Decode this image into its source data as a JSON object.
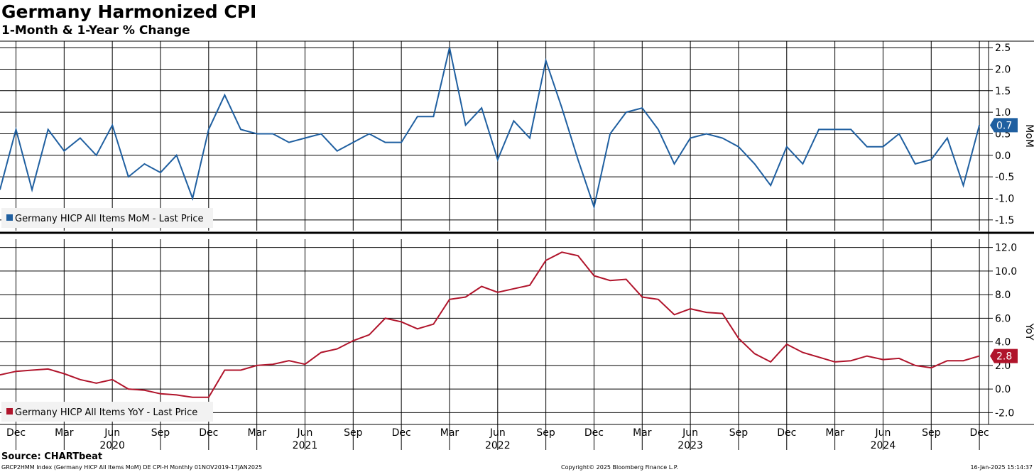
{
  "header": {
    "title": "Germany Harmonized CPI",
    "subtitle": "1-Month & 1-Year % Change"
  },
  "footer": {
    "source": "Source: CHARTbeat",
    "ticker_info": "GRCP2HMM Index (Germany HICP All Items MoM) DE CPI-H  Monthly 01NOV2019-17JAN2025",
    "copyright": "Copyright© 2025 Bloomberg Finance L.P.",
    "timestamp": "16-Jan-2025 15:14:37"
  },
  "colors": {
    "mom": "#1f5fa0",
    "yoy": "#b0142b",
    "grid": "#000000"
  },
  "chart_data": [
    {
      "type": "line",
      "ylabel": "MoM",
      "ylim": [
        -1.75,
        2.65
      ],
      "yticks": [
        "-1.5",
        "-1.0",
        "-0.5",
        "0.0",
        "0.5",
        "1.0",
        "1.5",
        "2.0",
        "2.5"
      ],
      "legend": "Germany HICP All Items MoM - Last Price",
      "legend_position": "bottom-left",
      "last_value_label": "0.7",
      "series": [
        {
          "name": "Germany HICP All Items MoM - Last Price",
          "x": [
            "2019-11",
            "2019-12",
            "2020-01",
            "2020-02",
            "2020-03",
            "2020-04",
            "2020-05",
            "2020-06",
            "2020-07",
            "2020-08",
            "2020-09",
            "2020-10",
            "2020-11",
            "2020-12",
            "2021-01",
            "2021-02",
            "2021-03",
            "2021-04",
            "2021-05",
            "2021-06",
            "2021-07",
            "2021-08",
            "2021-09",
            "2021-10",
            "2021-11",
            "2021-12",
            "2022-01",
            "2022-02",
            "2022-03",
            "2022-04",
            "2022-05",
            "2022-06",
            "2022-07",
            "2022-08",
            "2022-09",
            "2022-10",
            "2022-11",
            "2022-12",
            "2023-01",
            "2023-02",
            "2023-03",
            "2023-04",
            "2023-05",
            "2023-06",
            "2023-07",
            "2023-08",
            "2023-09",
            "2023-10",
            "2023-11",
            "2023-12",
            "2024-01",
            "2024-02",
            "2024-03",
            "2024-04",
            "2024-05",
            "2024-06",
            "2024-07",
            "2024-08",
            "2024-09",
            "2024-10",
            "2024-11",
            "2024-12"
          ],
          "values": [
            -0.8,
            0.6,
            -0.8,
            0.6,
            0.1,
            0.4,
            0.0,
            0.7,
            -0.5,
            -0.2,
            -0.4,
            0.0,
            -1.0,
            0.6,
            1.4,
            0.6,
            0.5,
            0.5,
            0.3,
            0.4,
            0.5,
            0.1,
            0.3,
            0.5,
            0.3,
            0.3,
            0.9,
            0.9,
            2.5,
            0.7,
            1.1,
            -0.1,
            0.8,
            0.4,
            2.2,
            1.1,
            -0.1,
            -1.2,
            0.5,
            1.0,
            1.1,
            0.6,
            -0.2,
            0.4,
            0.5,
            0.4,
            0.2,
            -0.2,
            -0.7,
            0.2,
            -0.2,
            0.6,
            0.6,
            0.6,
            0.2,
            0.2,
            0.5,
            -0.2,
            -0.1,
            0.4,
            -0.7,
            0.7
          ]
        }
      ]
    },
    {
      "type": "line",
      "ylabel": "YoY",
      "ylim": [
        -3.0,
        12.7
      ],
      "yticks": [
        "-2.0",
        "0.0",
        "2.0",
        "4.0",
        "6.0",
        "8.0",
        "10.0",
        "12.0"
      ],
      "legend": "Germany HICP All Items YoY - Last Price",
      "legend_position": "bottom-left",
      "last_value_label": "2.8",
      "xlabels": [
        "Dec",
        "Mar",
        "Jun",
        "Sep",
        "Dec",
        "Mar",
        "Jun",
        "Sep",
        "Dec",
        "Mar",
        "Jun",
        "Sep",
        "Dec",
        "Mar",
        "Jun",
        "Sep",
        "Dec",
        "Mar",
        "Jun",
        "Sep",
        "Dec"
      ],
      "years": [
        "2020",
        "2021",
        "2022",
        "2023",
        "2024"
      ],
      "series": [
        {
          "name": "Germany HICP All Items YoY - Last Price",
          "x": [
            "2019-11",
            "2019-12",
            "2020-01",
            "2020-02",
            "2020-03",
            "2020-04",
            "2020-05",
            "2020-06",
            "2020-07",
            "2020-08",
            "2020-09",
            "2020-10",
            "2020-11",
            "2020-12",
            "2021-01",
            "2021-02",
            "2021-03",
            "2021-04",
            "2021-05",
            "2021-06",
            "2021-07",
            "2021-08",
            "2021-09",
            "2021-10",
            "2021-11",
            "2021-12",
            "2022-01",
            "2022-02",
            "2022-03",
            "2022-04",
            "2022-05",
            "2022-06",
            "2022-07",
            "2022-08",
            "2022-09",
            "2022-10",
            "2022-11",
            "2022-12",
            "2023-01",
            "2023-02",
            "2023-03",
            "2023-04",
            "2023-05",
            "2023-06",
            "2023-07",
            "2023-08",
            "2023-09",
            "2023-10",
            "2023-11",
            "2023-12",
            "2024-01",
            "2024-02",
            "2024-03",
            "2024-04",
            "2024-05",
            "2024-06",
            "2024-07",
            "2024-08",
            "2024-09",
            "2024-10",
            "2024-11",
            "2024-12"
          ],
          "values": [
            1.2,
            1.5,
            1.6,
            1.7,
            1.3,
            0.8,
            0.5,
            0.8,
            0.0,
            -0.1,
            -0.4,
            -0.5,
            -0.7,
            -0.7,
            1.6,
            1.6,
            2.0,
            2.1,
            2.4,
            2.1,
            3.1,
            3.4,
            4.1,
            4.6,
            6.0,
            5.7,
            5.1,
            5.5,
            7.6,
            7.8,
            8.7,
            8.2,
            8.5,
            8.8,
            10.9,
            11.6,
            11.3,
            9.6,
            9.2,
            9.3,
            7.8,
            7.6,
            6.3,
            6.8,
            6.5,
            6.4,
            4.3,
            3.0,
            2.3,
            3.8,
            3.1,
            2.7,
            2.3,
            2.4,
            2.8,
            2.5,
            2.6,
            2.0,
            1.8,
            2.4,
            2.4,
            2.8
          ]
        }
      ]
    }
  ]
}
